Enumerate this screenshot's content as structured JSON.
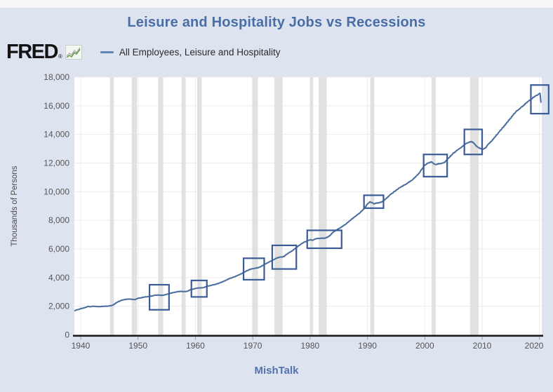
{
  "header": {
    "logo_text": "FRED",
    "logo_reg": "®",
    "logo_icon": "sparkline-chart-icon"
  },
  "legend": {
    "label": "All Employees, Leisure and Hospitality",
    "swatch_color": "#6187b5"
  },
  "footer": {
    "watermark": "MishTalk"
  },
  "colors": {
    "page_background": "#dde4ef",
    "plot_background": "#ffffff",
    "title": "#4a6da7",
    "series_line": "#4a6d9e",
    "annotation_box": "#3b5c98",
    "recession_band": "#e1e1e1",
    "gridline": "#ebebeb",
    "axis_line": "#1a1a1a",
    "tick_text": "#555555",
    "watermark": "#5472ae"
  },
  "chart_data": {
    "type": "line",
    "title": "Leisure and Hospitality Jobs vs Recessions",
    "xlabel": "",
    "ylabel": "Thousands of Persons",
    "xlim": [
      1938.9,
      2020.4
    ],
    "ylim": [
      0,
      18000
    ],
    "grid": true,
    "legend_position": "top-left",
    "x_ticks": [
      1940,
      1950,
      1960,
      1970,
      1980,
      1990,
      2000,
      2010,
      2020
    ],
    "y_ticks": [
      0,
      2000,
      4000,
      6000,
      8000,
      10000,
      12000,
      14000,
      16000,
      18000
    ],
    "y_tick_labels": [
      "0",
      "2,000",
      "4,000",
      "6,000",
      "8,000",
      "10,000",
      "12,000",
      "14,000",
      "16,000",
      "18,000"
    ],
    "series": [
      {
        "name": "All Employees, Leisure and Hospitality",
        "color": "#4a6d9e",
        "units": "Thousands of Persons",
        "points": [
          [
            1939.0,
            1700
          ],
          [
            1939.5,
            1760
          ],
          [
            1940.0,
            1830
          ],
          [
            1940.5,
            1870
          ],
          [
            1941.0,
            1940
          ],
          [
            1941.3,
            1990
          ],
          [
            1941.6,
            1960
          ],
          [
            1942.0,
            2000
          ],
          [
            1942.5,
            1985
          ],
          [
            1943.0,
            1970
          ],
          [
            1943.5,
            1975
          ],
          [
            1944.0,
            1990
          ],
          [
            1944.5,
            2000
          ],
          [
            1945.0,
            2020
          ],
          [
            1945.4,
            2040
          ],
          [
            1945.8,
            2120
          ],
          [
            1946.2,
            2240
          ],
          [
            1946.6,
            2330
          ],
          [
            1947.0,
            2400
          ],
          [
            1947.5,
            2450
          ],
          [
            1948.0,
            2490
          ],
          [
            1948.6,
            2500
          ],
          [
            1949.0,
            2480
          ],
          [
            1949.5,
            2470
          ],
          [
            1950.0,
            2550
          ],
          [
            1950.5,
            2590
          ],
          [
            1951.0,
            2630
          ],
          [
            1951.5,
            2660
          ],
          [
            1952.0,
            2690
          ],
          [
            1952.5,
            2720
          ],
          [
            1953.0,
            2770
          ],
          [
            1953.5,
            2780
          ],
          [
            1954.0,
            2760
          ],
          [
            1954.5,
            2770
          ],
          [
            1955.0,
            2830
          ],
          [
            1955.5,
            2880
          ],
          [
            1956.0,
            2940
          ],
          [
            1956.5,
            2980
          ],
          [
            1957.0,
            3020
          ],
          [
            1957.5,
            3040
          ],
          [
            1958.0,
            3020
          ],
          [
            1958.5,
            3030
          ],
          [
            1959.0,
            3130
          ],
          [
            1959.5,
            3180
          ],
          [
            1960.0,
            3230
          ],
          [
            1960.4,
            3270
          ],
          [
            1960.8,
            3280
          ],
          [
            1961.2,
            3290
          ],
          [
            1961.6,
            3320
          ],
          [
            1962.0,
            3380
          ],
          [
            1963.0,
            3480
          ],
          [
            1964.0,
            3590
          ],
          [
            1965.0,
            3750
          ],
          [
            1966.0,
            3940
          ],
          [
            1967.0,
            4080
          ],
          [
            1968.0,
            4270
          ],
          [
            1969.0,
            4480
          ],
          [
            1969.5,
            4570
          ],
          [
            1970.0,
            4620
          ],
          [
            1970.5,
            4650
          ],
          [
            1971.0,
            4700
          ],
          [
            1971.5,
            4790
          ],
          [
            1972.0,
            4910
          ],
          [
            1972.5,
            5010
          ],
          [
            1973.0,
            5120
          ],
          [
            1973.5,
            5220
          ],
          [
            1974.0,
            5320
          ],
          [
            1974.5,
            5410
          ],
          [
            1975.0,
            5430
          ],
          [
            1975.5,
            5490
          ],
          [
            1976.0,
            5650
          ],
          [
            1976.5,
            5770
          ],
          [
            1977.0,
            5910
          ],
          [
            1977.5,
            6060
          ],
          [
            1978.0,
            6220
          ],
          [
            1978.5,
            6360
          ],
          [
            1979.0,
            6480
          ],
          [
            1979.5,
            6570
          ],
          [
            1980.0,
            6640
          ],
          [
            1980.4,
            6610
          ],
          [
            1980.8,
            6670
          ],
          [
            1981.2,
            6730
          ],
          [
            1981.6,
            6740
          ],
          [
            1982.0,
            6760
          ],
          [
            1982.5,
            6750
          ],
          [
            1983.0,
            6810
          ],
          [
            1983.5,
            6950
          ],
          [
            1984.0,
            7170
          ],
          [
            1984.5,
            7290
          ],
          [
            1985.0,
            7420
          ],
          [
            1985.5,
            7540
          ],
          [
            1986.0,
            7670
          ],
          [
            1986.5,
            7830
          ],
          [
            1987.0,
            8000
          ],
          [
            1987.5,
            8160
          ],
          [
            1988.0,
            8310
          ],
          [
            1988.5,
            8460
          ],
          [
            1989.0,
            8650
          ],
          [
            1989.5,
            8850
          ],
          [
            1990.0,
            9150
          ],
          [
            1990.4,
            9280
          ],
          [
            1990.8,
            9230
          ],
          [
            1991.2,
            9160
          ],
          [
            1991.6,
            9210
          ],
          [
            1992.0,
            9230
          ],
          [
            1992.5,
            9280
          ],
          [
            1993.0,
            9420
          ],
          [
            1993.5,
            9600
          ],
          [
            1994.0,
            9800
          ],
          [
            1994.5,
            9950
          ],
          [
            1995.0,
            10100
          ],
          [
            1995.5,
            10240
          ],
          [
            1996.0,
            10370
          ],
          [
            1996.5,
            10480
          ],
          [
            1997.0,
            10600
          ],
          [
            1997.5,
            10740
          ],
          [
            1998.0,
            10880
          ],
          [
            1998.5,
            11080
          ],
          [
            1999.0,
            11290
          ],
          [
            1999.5,
            11570
          ],
          [
            2000.0,
            11860
          ],
          [
            2000.5,
            11980
          ],
          [
            2001.1,
            12090
          ],
          [
            2001.5,
            11970
          ],
          [
            2001.9,
            11890
          ],
          [
            2002.3,
            11940
          ],
          [
            2002.7,
            11960
          ],
          [
            2003.1,
            12000
          ],
          [
            2003.5,
            12070
          ],
          [
            2004.0,
            12290
          ],
          [
            2004.5,
            12490
          ],
          [
            2005.0,
            12690
          ],
          [
            2005.5,
            12840
          ],
          [
            2006.0,
            12980
          ],
          [
            2006.5,
            13150
          ],
          [
            2007.0,
            13310
          ],
          [
            2007.5,
            13420
          ],
          [
            2008.1,
            13500
          ],
          [
            2008.5,
            13420
          ],
          [
            2009.0,
            13190
          ],
          [
            2009.5,
            13040
          ],
          [
            2009.9,
            12970
          ],
          [
            2010.3,
            13000
          ],
          [
            2010.7,
            13090
          ],
          [
            2011.0,
            13290
          ],
          [
            2011.5,
            13480
          ],
          [
            2012.0,
            13700
          ],
          [
            2012.5,
            13950
          ],
          [
            2013.0,
            14200
          ],
          [
            2013.5,
            14430
          ],
          [
            2014.0,
            14660
          ],
          [
            2014.5,
            14910
          ],
          [
            2015.0,
            15160
          ],
          [
            2015.5,
            15400
          ],
          [
            2016.0,
            15620
          ],
          [
            2016.5,
            15790
          ],
          [
            2017.0,
            15950
          ],
          [
            2017.5,
            16130
          ],
          [
            2018.0,
            16300
          ],
          [
            2018.5,
            16450
          ],
          [
            2019.0,
            16600
          ],
          [
            2019.5,
            16730
          ],
          [
            2020.1,
            16870
          ],
          [
            2020.25,
            16250
          ]
        ]
      }
    ],
    "recession_bands": [
      [
        1945.1,
        1945.8
      ],
      [
        1948.9,
        1949.8
      ],
      [
        1953.5,
        1954.4
      ],
      [
        1957.6,
        1958.3
      ],
      [
        1960.3,
        1961.1
      ],
      [
        1969.9,
        1970.9
      ],
      [
        1973.8,
        1975.2
      ],
      [
        1980.0,
        1980.5
      ],
      [
        1981.5,
        1982.9
      ],
      [
        1990.5,
        1991.2
      ],
      [
        2001.2,
        2001.9
      ],
      [
        2007.9,
        2009.4
      ]
    ],
    "annotation_boxes": [
      {
        "x1": 1952.0,
        "x2": 1955.4,
        "y1": 1750,
        "y2": 3500
      },
      {
        "x1": 1959.3,
        "x2": 1962.0,
        "y1": 2650,
        "y2": 3800
      },
      {
        "x1": 1968.4,
        "x2": 1972.0,
        "y1": 3850,
        "y2": 5350
      },
      {
        "x1": 1973.4,
        "x2": 1977.6,
        "y1": 4600,
        "y2": 6250
      },
      {
        "x1": 1979.5,
        "x2": 1985.5,
        "y1": 6050,
        "y2": 7300
      },
      {
        "x1": 1989.4,
        "x2": 1992.8,
        "y1": 8850,
        "y2": 9750
      },
      {
        "x1": 1999.8,
        "x2": 2003.9,
        "y1": 11050,
        "y2": 12600
      },
      {
        "x1": 2006.9,
        "x2": 2010.0,
        "y1": 12600,
        "y2": 14350
      },
      {
        "x1": 2018.5,
        "x2": 2021.6,
        "y1": 15450,
        "y2": 17450
      }
    ]
  }
}
